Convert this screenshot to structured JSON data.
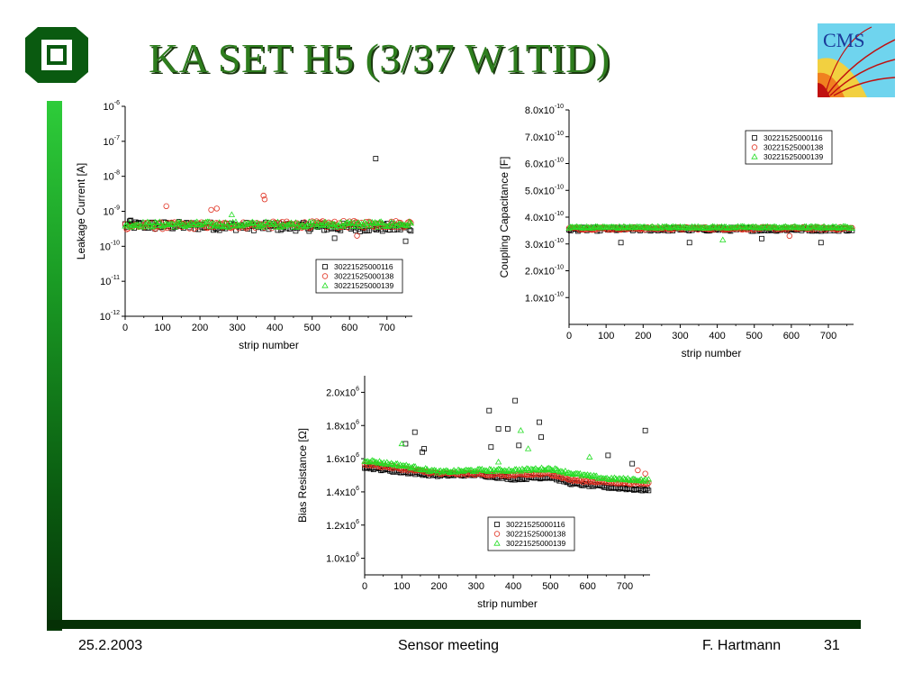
{
  "slide": {
    "title": "KA SET H5 (3/37 W1TID)",
    "accent_color": "#2e7d1e",
    "footer": {
      "date": "25.2.2003",
      "event": "Sensor meeting",
      "author": "F. Hartmann",
      "page": "31"
    },
    "cms_logo_text": "CMS"
  },
  "chart_data": [
    {
      "id": "leakage",
      "type": "scatter",
      "xlabel": "strip number",
      "ylabel": "Leakage Current [A]",
      "scale": "log",
      "xlim": [
        0,
        768
      ],
      "ylim_exp": [
        -12,
        -6
      ],
      "x_ticks": [
        0,
        100,
        200,
        300,
        400,
        500,
        600,
        700
      ],
      "y_ticks": [
        "10^-12",
        "10^-11",
        "10^-10",
        "10^-9",
        "10^-8",
        "10^-7",
        "10^-6"
      ],
      "legend_position": "bottom-right",
      "series": [
        {
          "name": "30221525000116",
          "marker": "square",
          "color": "#000000",
          "baseline": 4e-10,
          "trend": -0.0001,
          "spread": 0.12
        },
        {
          "name": "30221525000138",
          "marker": "circle",
          "color": "#e03020",
          "baseline": 3.8e-10,
          "trend": 8e-05,
          "spread": 0.1
        },
        {
          "name": "30221525000139",
          "marker": "triangle",
          "color": "#22dd22",
          "baseline": 4.2e-10,
          "trend": 0.0,
          "spread": 0.08
        }
      ],
      "outliers": [
        {
          "series": 0,
          "x": 670,
          "y": 3.2e-08
        },
        {
          "series": 0,
          "x": 560,
          "y": 1.7e-10
        },
        {
          "series": 0,
          "x": 750,
          "y": 1.4e-10
        },
        {
          "series": 0,
          "x": 15,
          "y": 5.5e-10
        },
        {
          "series": 1,
          "x": 110,
          "y": 1.4e-09
        },
        {
          "series": 1,
          "x": 230,
          "y": 1.1e-09
        },
        {
          "series": 1,
          "x": 245,
          "y": 1.2e-09
        },
        {
          "series": 1,
          "x": 370,
          "y": 2.8e-09
        },
        {
          "series": 1,
          "x": 373,
          "y": 2.2e-09
        },
        {
          "series": 1,
          "x": 620,
          "y": 2e-10
        },
        {
          "series": 2,
          "x": 285,
          "y": 8e-10
        }
      ]
    },
    {
      "id": "capacitance",
      "type": "scatter",
      "xlabel": "strip number",
      "ylabel": "Coupling Capacitance [F]",
      "xlim": [
        0,
        768
      ],
      "ylim": [
        0,
        8e-10
      ],
      "x_ticks": [
        0,
        100,
        200,
        300,
        400,
        500,
        600,
        700
      ],
      "y_ticks": [
        "1.0x10^-10",
        "2.0x10^-10",
        "3.0x10^-10",
        "4.0x10^-10",
        "5.0x10^-10",
        "6.0x10^-10",
        "7.0x10^-10",
        "8.0x10^-10"
      ],
      "y_tick_values": [
        1e-10,
        2e-10,
        3e-10,
        4e-10,
        5e-10,
        6e-10,
        7e-10,
        8e-10
      ],
      "legend_position": "top-right",
      "series": [
        {
          "name": "30221525000116",
          "marker": "square",
          "color": "#000000",
          "baseline": 3.55e-10,
          "trend": 0.0,
          "spread": 0.02
        },
        {
          "name": "30221525000138",
          "marker": "circle",
          "color": "#e03020",
          "baseline": 3.58e-10,
          "trend": 0.0,
          "spread": 0.015
        },
        {
          "name": "30221525000139",
          "marker": "triangle",
          "color": "#22dd22",
          "baseline": 3.62e-10,
          "trend": 0.0,
          "spread": 0.01
        }
      ],
      "outliers": [
        {
          "series": 0,
          "x": 140,
          "y": 3.05e-10
        },
        {
          "series": 0,
          "x": 325,
          "y": 3.05e-10
        },
        {
          "series": 0,
          "x": 680,
          "y": 3.05e-10
        },
        {
          "series": 0,
          "x": 520,
          "y": 3.2e-10
        },
        {
          "series": 2,
          "x": 415,
          "y": 3.15e-10
        },
        {
          "series": 1,
          "x": 595,
          "y": 3.3e-10
        }
      ]
    },
    {
      "id": "bias",
      "type": "scatter",
      "xlabel": "strip number",
      "ylabel": "Bias Resistance [Ω]",
      "xlim": [
        0,
        768
      ],
      "ylim": [
        900000,
        2100000
      ],
      "x_ticks": [
        0,
        100,
        200,
        300,
        400,
        500,
        600,
        700
      ],
      "y_ticks": [
        "1.0x10^6",
        "1.2x10^6",
        "1.4x10^6",
        "1.6x10^6",
        "1.8x10^6",
        "2.0x10^6"
      ],
      "y_tick_values": [
        1000000,
        1200000,
        1400000,
        1600000,
        1800000,
        2000000
      ],
      "legend_position": "bottom-center",
      "series": [
        {
          "name": "30221525000116",
          "marker": "square",
          "color": "#000000"
        },
        {
          "name": "30221525000138",
          "marker": "circle",
          "color": "#e03020"
        },
        {
          "name": "30221525000139",
          "marker": "triangle",
          "color": "#22dd22"
        }
      ],
      "profiles": [
        {
          "series": 0,
          "points": [
            [
              0,
              1550000
            ],
            [
              100,
              1520000
            ],
            [
              200,
              1500000
            ],
            [
              300,
              1505000
            ],
            [
              400,
              1480000
            ],
            [
              500,
              1490000
            ],
            [
              560,
              1450000
            ],
            [
              650,
              1430000
            ],
            [
              768,
              1410000
            ]
          ]
        },
        {
          "series": 1,
          "points": [
            [
              0,
              1570000
            ],
            [
              100,
              1540000
            ],
            [
              200,
              1510000
            ],
            [
              300,
              1510000
            ],
            [
              400,
              1500000
            ],
            [
              500,
              1510000
            ],
            [
              560,
              1470000
            ],
            [
              650,
              1460000
            ],
            [
              768,
              1450000
            ]
          ]
        },
        {
          "series": 2,
          "points": [
            [
              0,
              1590000
            ],
            [
              100,
              1560000
            ],
            [
              200,
              1520000
            ],
            [
              300,
              1530000
            ],
            [
              400,
              1530000
            ],
            [
              500,
              1540000
            ],
            [
              560,
              1510000
            ],
            [
              650,
              1480000
            ],
            [
              768,
              1470000
            ]
          ]
        }
      ],
      "outliers": [
        {
          "series": 0,
          "x": 335,
          "y": 1890000
        },
        {
          "series": 0,
          "x": 405,
          "y": 1950000
        },
        {
          "series": 0,
          "x": 360,
          "y": 1780000
        },
        {
          "series": 0,
          "x": 385,
          "y": 1780000
        },
        {
          "series": 0,
          "x": 470,
          "y": 1820000
        },
        {
          "series": 0,
          "x": 135,
          "y": 1760000
        },
        {
          "series": 0,
          "x": 755,
          "y": 1770000
        },
        {
          "series": 0,
          "x": 110,
          "y": 1690000
        },
        {
          "series": 0,
          "x": 160,
          "y": 1660000
        },
        {
          "series": 0,
          "x": 340,
          "y": 1670000
        },
        {
          "series": 0,
          "x": 475,
          "y": 1730000
        },
        {
          "series": 0,
          "x": 415,
          "y": 1680000
        },
        {
          "series": 0,
          "x": 655,
          "y": 1620000
        },
        {
          "series": 0,
          "x": 720,
          "y": 1570000
        },
        {
          "series": 0,
          "x": 155,
          "y": 1640000
        },
        {
          "series": 2,
          "x": 100,
          "y": 1690000
        },
        {
          "series": 2,
          "x": 420,
          "y": 1770000
        },
        {
          "series": 2,
          "x": 440,
          "y": 1660000
        },
        {
          "series": 2,
          "x": 605,
          "y": 1610000
        },
        {
          "series": 2,
          "x": 360,
          "y": 1580000
        },
        {
          "series": 1,
          "x": 755,
          "y": 1510000
        },
        {
          "series": 1,
          "x": 735,
          "y": 1530000
        }
      ]
    }
  ]
}
